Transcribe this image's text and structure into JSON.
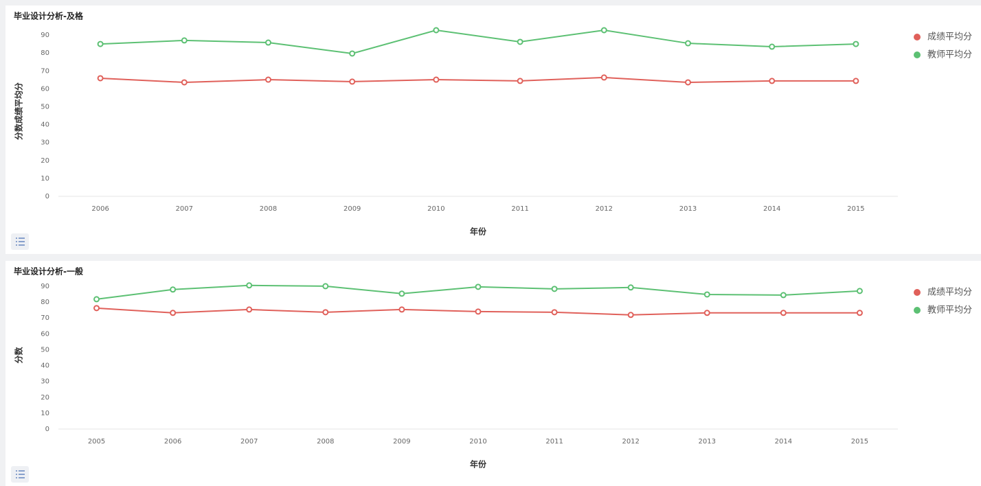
{
  "chart_data": [
    {
      "type": "line",
      "title": "毕业设计分析-及格",
      "x_label": "年份",
      "y_label": "分数成绩平均分",
      "categories": [
        "2006",
        "2007",
        "2008",
        "2009",
        "2010",
        "2011",
        "2012",
        "2013",
        "2014",
        "2015"
      ],
      "series": [
        {
          "name": "成绩平均分",
          "color": "#e0605a",
          "values": [
            65.9,
            63.6,
            65.1,
            64,
            65.1,
            64.4,
            66.3,
            63.6,
            64.4,
            64.4
          ]
        },
        {
          "name": "教师平均分",
          "color": "#5cc073",
          "values": [
            85,
            87,
            85.8,
            79.7,
            92.7,
            86.2,
            92.7,
            85.4,
            83.5,
            85
          ]
        }
      ],
      "ylim": [
        0,
        95
      ],
      "yticks": [
        0,
        10,
        20,
        30,
        40,
        50,
        60,
        70,
        80,
        90
      ],
      "grid": false,
      "legend": "right"
    },
    {
      "type": "line",
      "title": "毕业设计分析-一般",
      "x_label": "年份",
      "y_label": "分数",
      "categories": [
        "2005",
        "2006",
        "2007",
        "2008",
        "2009",
        "2010",
        "2011",
        "2012",
        "2013",
        "2014",
        "2015"
      ],
      "series": [
        {
          "name": "成绩平均分",
          "color": "#e0605a",
          "values": [
            76.2,
            73.2,
            75.3,
            73.6,
            75.3,
            74,
            73.6,
            71.9,
            73.2,
            73.2,
            73.2
          ]
        },
        {
          "name": "教师平均分",
          "color": "#5cc073",
          "values": [
            81.8,
            87.9,
            90.5,
            90,
            85.3,
            89.6,
            88.3,
            89.2,
            84.8,
            84.4,
            87
          ]
        }
      ],
      "ylim": [
        0,
        93
      ],
      "yticks": [
        0,
        10,
        20,
        30,
        40,
        50,
        60,
        70,
        80,
        90
      ],
      "grid": false,
      "legend": "right"
    }
  ]
}
